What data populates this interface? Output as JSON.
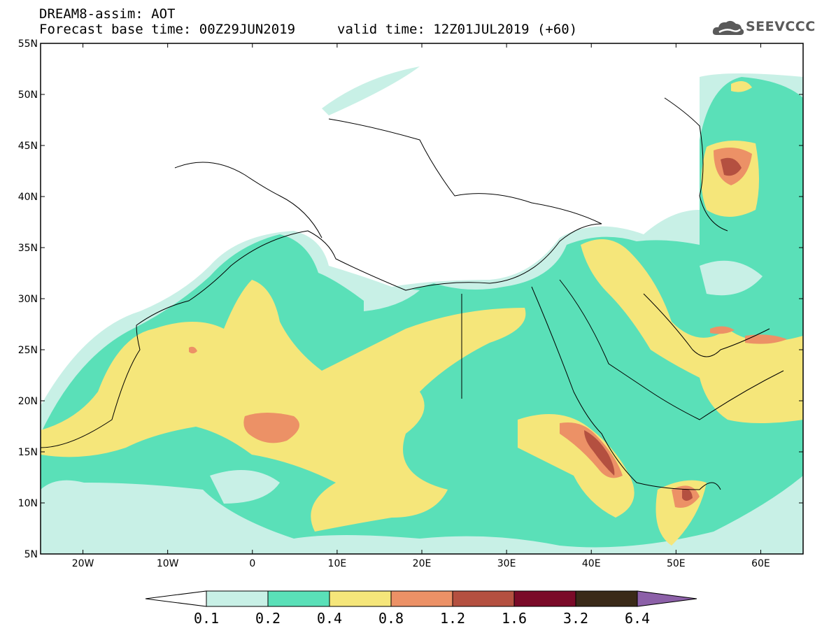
{
  "header": {
    "model_title": "DREAM8-assim: AOT",
    "base_time": "Forecast base time: 00Z29JUN2019",
    "valid_time": "valid time: 12Z01JUL2019 (+60)"
  },
  "logo": {
    "text": "SEEVCCC",
    "icon": "cloud-icon"
  },
  "map": {
    "projection": "lat-lon",
    "lon_range": [
      -25,
      65
    ],
    "lat_range": [
      5,
      55
    ],
    "lat_labels": [
      "55N",
      "50N",
      "45N",
      "40N",
      "35N",
      "30N",
      "25N",
      "20N",
      "15N",
      "10N",
      "5N"
    ],
    "lon_labels": [
      "20W",
      "10W",
      "0",
      "10E",
      "20E",
      "30E",
      "40E",
      "50E",
      "60E"
    ]
  },
  "legend": {
    "variable": "AOT",
    "levels": [
      "0.1",
      "0.2",
      "0.4",
      "0.8",
      "1.2",
      "1.6",
      "3.2",
      "6.4"
    ],
    "colors": [
      "#c8f0e6",
      "#5ae0b8",
      "#f5e67a",
      "#ec9166",
      "#b45040",
      "#7a0a28",
      "#3a2a18",
      "#8c60a8"
    ]
  }
}
